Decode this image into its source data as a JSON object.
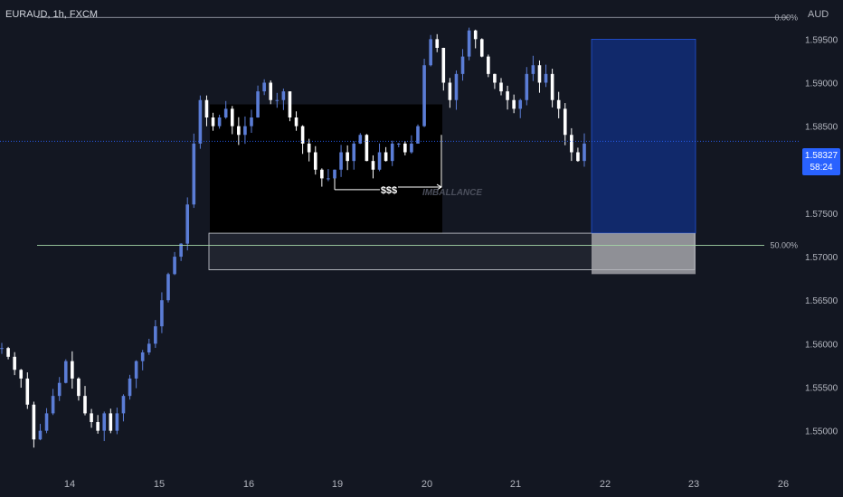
{
  "header": {
    "symbol": "EURAUD, 1h, FXCM",
    "currency": "AUD"
  },
  "current_price": {
    "value": "1.58327",
    "countdown": "58:24"
  },
  "chart_data": {
    "type": "candlestick",
    "y_axis": {
      "ticks": [
        "1.59500",
        "1.59000",
        "1.58500",
        "1.58000",
        "1.57500",
        "1.57000",
        "1.56500",
        "1.56000",
        "1.55500",
        "1.55000"
      ],
      "range": [
        1.5455,
        1.5995
      ]
    },
    "x_axis": {
      "ticks": [
        "14",
        "15",
        "16",
        "19",
        "20",
        "21",
        "22",
        "23",
        "26"
      ]
    },
    "last_price": 1.58327,
    "candles_close_path": [
      1.5595,
      1.5585,
      1.557,
      1.556,
      1.553,
      1.549,
      1.55,
      1.552,
      1.554,
      1.5555,
      1.558,
      1.556,
      1.554,
      1.552,
      1.551,
      1.55,
      1.552,
      1.55,
      1.552,
      1.554,
      1.556,
      1.558,
      1.559,
      1.56,
      1.562,
      1.565,
      1.568,
      1.57,
      1.5715,
      1.576,
      1.583,
      1.588,
      1.586,
      1.585,
      1.586,
      1.587,
      1.585,
      1.584,
      1.585,
      1.586,
      1.589,
      1.59,
      1.588,
      1.588,
      1.589,
      1.586,
      1.585,
      1.583,
      1.582,
      1.58,
      1.579,
      1.579,
      1.58,
      1.582,
      1.581,
      1.583,
      1.584,
      1.581,
      1.58,
      1.582,
      1.581,
      1.583,
      1.583,
      1.582,
      1.583,
      1.585,
      1.592,
      1.595,
      1.594,
      1.59,
      1.588,
      1.591,
      1.593,
      1.596,
      1.595,
      1.593,
      1.591,
      1.59,
      1.589,
      1.588,
      1.587,
      1.588,
      1.591,
      1.592,
      1.59,
      1.591,
      1.588,
      1.587,
      1.584,
      1.582,
      1.581,
      1.583
    ],
    "annotations": {
      "fib_top": {
        "label": "0.00%",
        "price": 1.5975
      },
      "fib_mid": {
        "label": "50.00%",
        "price": 1.5713
      },
      "liquidity_label": "$$$",
      "imbalance_label": "IMBALLANCE",
      "imbalance_zone": {
        "from": 1.5685,
        "to": 1.5727
      },
      "position_target": {
        "from": 1.5727,
        "to": 1.595
      },
      "position_stop": {
        "from": 1.568,
        "to": 1.5727
      }
    }
  }
}
